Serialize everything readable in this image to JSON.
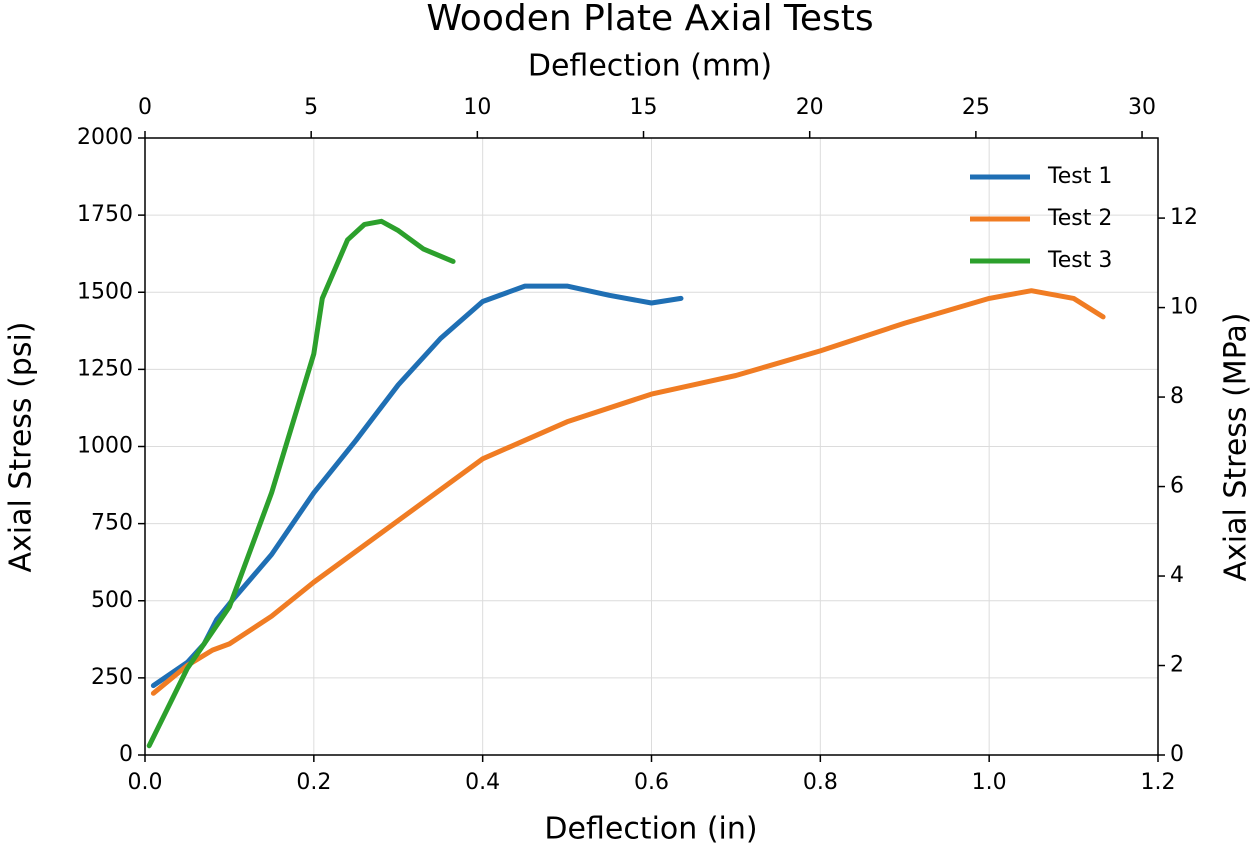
{
  "chart_data": {
    "type": "line",
    "title": "Wooden Plate Axial Tests",
    "xlabel": "Deflection (in)",
    "ylabel": "Axial Stress (psi)",
    "x2label": "Deflection (mm)",
    "y2label": "Axial Stress (MPa)",
    "xlim": [
      0,
      1.2
    ],
    "xticks": [
      {
        "value": 0,
        "label": "0.0"
      },
      0.2,
      0.4,
      0.6,
      0.8,
      {
        "value": 1,
        "label": "1.0"
      },
      1.2
    ],
    "ylim": [
      0,
      2000
    ],
    "yticks": [
      0,
      250,
      500,
      750,
      1000,
      1250,
      1500,
      1750,
      2000
    ],
    "x2lim": [
      0,
      30.48
    ],
    "x2ticks": [
      0,
      5,
      10,
      15,
      20,
      25,
      30
    ],
    "y2lim": [
      0,
      13.79
    ],
    "y2ticks": [
      0,
      2,
      4,
      6,
      8,
      10,
      12
    ],
    "grid": true,
    "legend": "upper right",
    "series": [
      {
        "name": "Test 1",
        "color": "#1f6fb4",
        "x": [
          0.01,
          0.05,
          0.07,
          0.085,
          0.1,
          0.15,
          0.2,
          0.25,
          0.3,
          0.35,
          0.4,
          0.45,
          0.5,
          0.55,
          0.6,
          0.635
        ],
        "values": [
          225,
          300,
          360,
          440,
          490,
          650,
          850,
          1020,
          1200,
          1350,
          1470,
          1520,
          1520,
          1490,
          1465,
          1480
        ]
      },
      {
        "name": "Test 2",
        "color": "#f07c23",
        "x": [
          0.01,
          0.05,
          0.08,
          0.1,
          0.15,
          0.2,
          0.3,
          0.4,
          0.5,
          0.6,
          0.7,
          0.8,
          0.9,
          1.0,
          1.05,
          1.1,
          1.135
        ],
        "values": [
          200,
          290,
          340,
          360,
          450,
          560,
          760,
          960,
          1080,
          1170,
          1230,
          1310,
          1400,
          1480,
          1505,
          1480,
          1420
        ]
      },
      {
        "name": "Test 3",
        "color": "#2ca02c",
        "x": [
          0.005,
          0.05,
          0.1,
          0.15,
          0.2,
          0.21,
          0.24,
          0.26,
          0.28,
          0.3,
          0.33,
          0.365
        ],
        "values": [
          30,
          280,
          480,
          850,
          1300,
          1480,
          1670,
          1720,
          1730,
          1700,
          1640,
          1600
        ]
      }
    ]
  }
}
